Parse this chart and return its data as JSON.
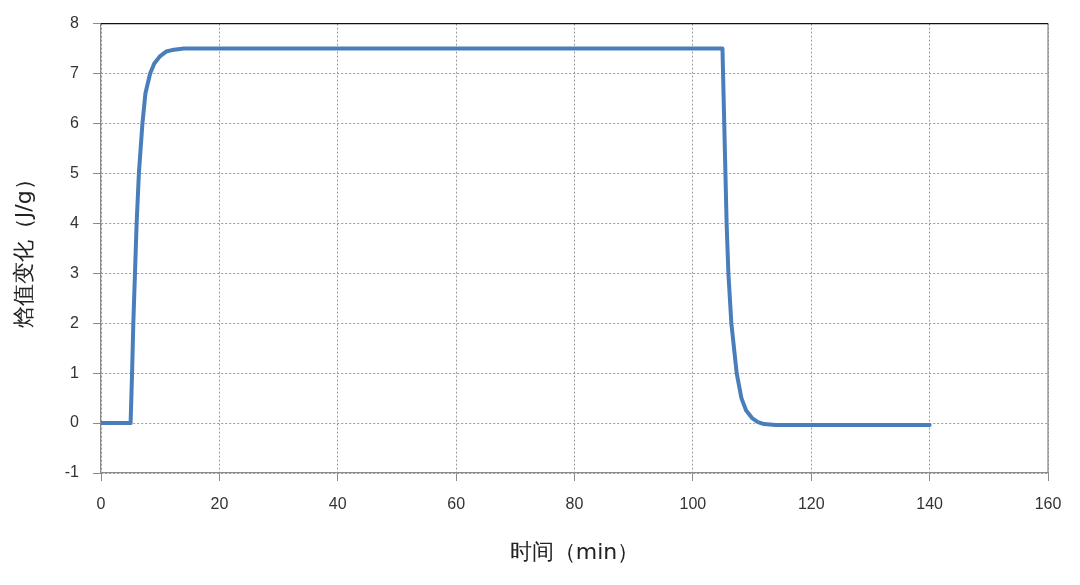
{
  "chart_data": {
    "type": "line",
    "xlabel": "时间（min）",
    "ylabel": "焓值变化（J/g）",
    "x": [
      0,
      5,
      5.25,
      5.46,
      5.74,
      6.02,
      6.4,
      7,
      7.5,
      8.3,
      9,
      10,
      11,
      12,
      14,
      105,
      105.1,
      105.3,
      105.5,
      105.7,
      106,
      106.5,
      107.4,
      108.2,
      109,
      110,
      111,
      112,
      114,
      140
    ],
    "series": [
      {
        "color": "#4a7ebb",
        "values": [
          0,
          0,
          1,
          2,
          3,
          4,
          5,
          6,
          6.6,
          7,
          7.2,
          7.35,
          7.44,
          7.47,
          7.5,
          7.5,
          7,
          6,
          5,
          4,
          3,
          2,
          1,
          0.5,
          0.25,
          0.1,
          0.02,
          -0.02,
          -0.04,
          -0.04
        ]
      }
    ],
    "xlim": [
      0,
      160
    ],
    "xticks": [
      0,
      20,
      40,
      60,
      80,
      100,
      120,
      140,
      160
    ],
    "ylim": [
      -1,
      8
    ],
    "yticks": [
      -1,
      0,
      1,
      2,
      3,
      4,
      5,
      6,
      7,
      8
    ],
    "grid": true,
    "marker": "none",
    "line_style": "solid"
  }
}
